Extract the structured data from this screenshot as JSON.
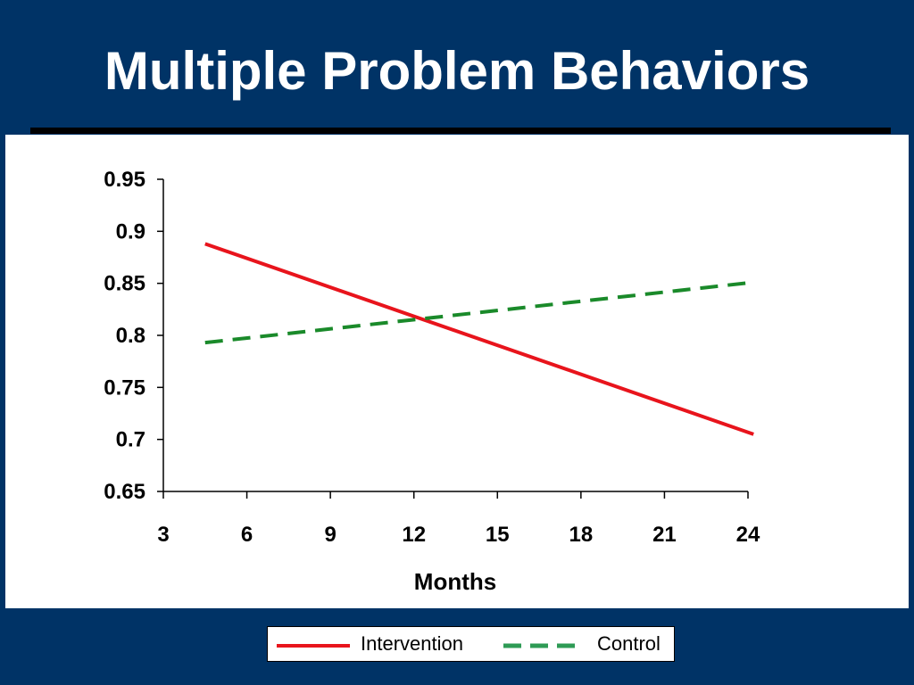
{
  "slide": {
    "title": "Multiple Problem Behaviors"
  },
  "colors": {
    "background": "#003366",
    "intervention": "#e8141c",
    "control": "#1a8a2a",
    "control_legend": "#2e9b55"
  },
  "chart_data": {
    "type": "line",
    "title": "",
    "xlabel": "Months",
    "ylabel": "",
    "xlim": [
      3,
      24
    ],
    "ylim": [
      0.65,
      0.95
    ],
    "x_ticks": [
      3,
      6,
      9,
      12,
      15,
      18,
      21,
      24
    ],
    "x_tick_labels": [
      "3",
      "6",
      "9",
      "12",
      "15",
      "18",
      "21",
      "24"
    ],
    "y_ticks": [
      0.65,
      0.7,
      0.75,
      0.8,
      0.85,
      0.9,
      0.95
    ],
    "y_tick_labels": [
      "0.65",
      "0.7",
      "0.75",
      "0.8",
      "0.85",
      "0.9",
      "0.95"
    ],
    "grid": false,
    "legend_position": "bottom",
    "series": [
      {
        "name": "Intervention",
        "style": "solid",
        "x": [
          4.5,
          24.2
        ],
        "y": [
          0.888,
          0.705
        ]
      },
      {
        "name": "Control",
        "style": "dashed",
        "x": [
          4.5,
          24.2
        ],
        "y": [
          0.793,
          0.851
        ]
      }
    ]
  }
}
